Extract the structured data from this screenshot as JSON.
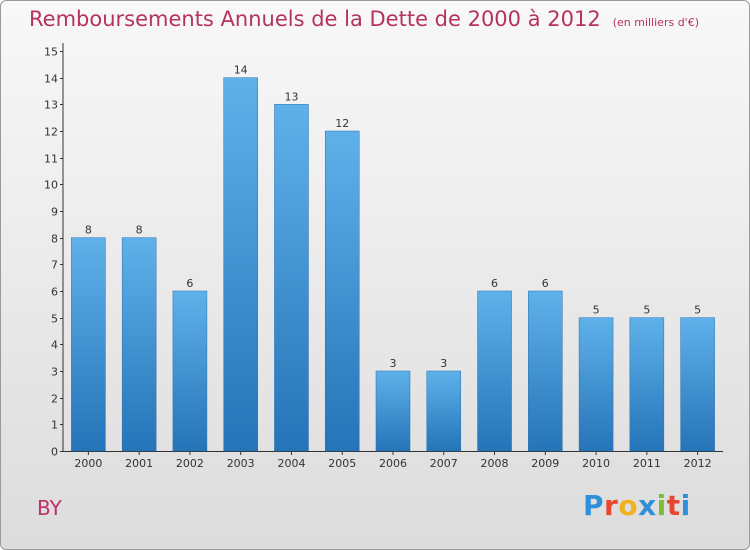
{
  "chart_data": {
    "type": "bar",
    "title": "Remboursements Annuels de la Dette de 2000 à 2012",
    "unit": "(en milliers d'€)",
    "categories": [
      "2000",
      "2001",
      "2002",
      "2003",
      "2004",
      "2005",
      "2006",
      "2007",
      "2008",
      "2009",
      "2010",
      "2011",
      "2012"
    ],
    "values": [
      8,
      8,
      6,
      14,
      13,
      12,
      3,
      3,
      6,
      6,
      5,
      5,
      5
    ],
    "ylim": [
      0,
      15
    ],
    "yticks": [
      0,
      1,
      2,
      3,
      4,
      5,
      6,
      7,
      8,
      9,
      10,
      11,
      12,
      13,
      14,
      15
    ],
    "grid": false,
    "bar_color": "#3e92d6"
  },
  "commune": "BY",
  "brand": {
    "letters": [
      "P",
      "r",
      "o",
      "x",
      "i",
      "t",
      "i"
    ],
    "colors": [
      "#2f8fd8",
      "#e8462f",
      "#f0b21e",
      "#2f8fd8",
      "#7cbd35",
      "#e8462f",
      "#2f8fd8"
    ]
  }
}
